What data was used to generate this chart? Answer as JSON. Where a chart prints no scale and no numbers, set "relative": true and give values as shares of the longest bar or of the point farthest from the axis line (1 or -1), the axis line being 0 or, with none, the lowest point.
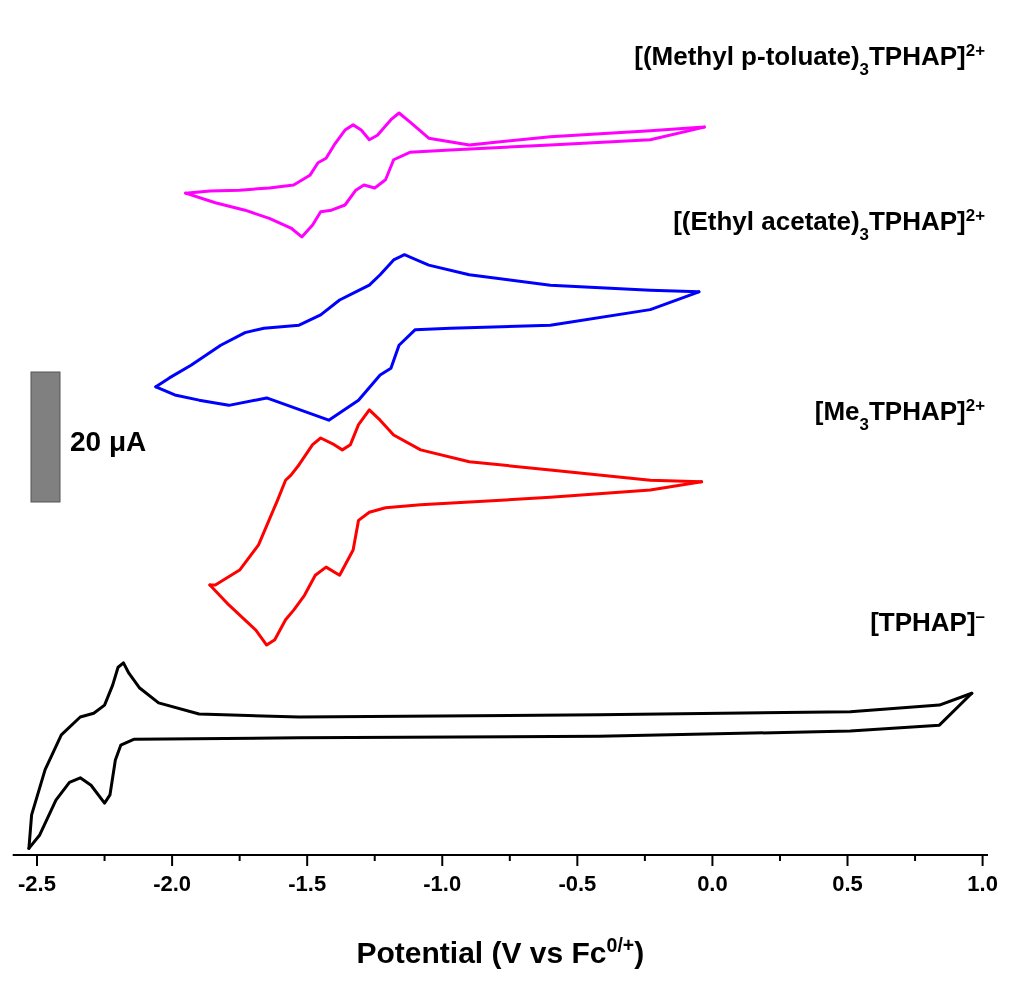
{
  "chart_data": {
    "type": "line",
    "relative": true,
    "xlabel": "Potential (V vs Fc$^{0/+}$)",
    "xlim": [
      -2.59,
      1.02
    ],
    "xticks": [
      {
        "value": -2.5,
        "label": "-2.5"
      },
      {
        "value": -2.25,
        "label": null
      },
      {
        "value": -2.0,
        "label": "-2.0"
      },
      {
        "value": -1.75,
        "label": null
      },
      {
        "value": -1.5,
        "label": "-1.5"
      },
      {
        "value": -1.25,
        "label": null
      },
      {
        "value": -1.0,
        "label": "-1.0"
      },
      {
        "value": -0.75,
        "label": null
      },
      {
        "value": -0.5,
        "label": "-0.5"
      },
      {
        "value": -0.25,
        "label": null
      },
      {
        "value": 0,
        "label": "0.0"
      },
      {
        "value": 0.25,
        "label": null
      },
      {
        "value": 0.5,
        "label": "0.5"
      },
      {
        "value": 0.75,
        "label": null
      },
      {
        "value": 1.0,
        "label": "1.0"
      }
    ],
    "grid": false,
    "legend": false,
    "marker": "none",
    "line_style": "solid",
    "annotations": [
      "20 μA"
    ],
    "series": [
      {
        "name": "[(Methyl p-toluate)$_{3}$TPHAP]$^{2+}$",
        "color": "#ff00ff",
        "x": [
          -0.03,
          -0.23,
          -0.6,
          -0.9,
          -1.05,
          -1.12,
          -1.16,
          -1.19,
          -1.24,
          -1.27,
          -1.3,
          -1.33,
          -1.36,
          -1.4,
          -1.43,
          -1.46,
          -1.49,
          -1.55,
          -1.64,
          -1.75,
          -1.86,
          -1.95
        ],
        "values": [
          0.981,
          0.976,
          0.968,
          0.957,
          0.966,
          0.988,
          1.0,
          0.991,
          0.97,
          0.964,
          0.977,
          0.984,
          0.977,
          0.957,
          0.939,
          0.933,
          0.916,
          0.903,
          0.899,
          0.896,
          0.895,
          0.892
        ]
      },
      {
        "color": "#ff00ff",
        "x": [
          -1.95,
          -1.84,
          -1.73,
          -1.64,
          -1.56,
          -1.52,
          -1.48,
          -1.45,
          -1.41,
          -1.36,
          -1.32,
          -1.29,
          -1.25,
          -1.21,
          -1.18,
          -1.12,
          -0.97,
          -0.6,
          -0.23,
          -0.03
        ],
        "values": [
          0.892,
          0.879,
          0.869,
          0.858,
          0.845,
          0.833,
          0.849,
          0.867,
          0.869,
          0.876,
          0.896,
          0.903,
          0.899,
          0.91,
          0.937,
          0.947,
          0.95,
          0.957,
          0.964,
          0.981
        ]
      },
      {
        "name": "[(Ethyl acetate)$_{3}$TPHAP]$^{2+}$",
        "color": "#0000ff",
        "x": [
          -0.05,
          -0.23,
          -0.6,
          -0.9,
          -1.05,
          -1.14,
          -1.18,
          -1.23,
          -1.27,
          -1.32,
          -1.38,
          -1.45,
          -1.53,
          -1.66,
          -1.73,
          -1.82,
          -1.93,
          -2.01,
          -2.06
        ],
        "values": [
          0.759,
          0.761,
          0.768,
          0.782,
          0.795,
          0.809,
          0.802,
          0.782,
          0.768,
          0.759,
          0.748,
          0.728,
          0.714,
          0.71,
          0.704,
          0.687,
          0.66,
          0.643,
          0.631
        ]
      },
      {
        "color": "#0000ff",
        "x": [
          -2.06,
          -1.99,
          -1.9,
          -1.79,
          -1.65,
          -1.42,
          -1.31,
          -1.23,
          -1.19,
          -1.16,
          -1.1,
          -0.97,
          -0.6,
          -0.23,
          -0.05
        ],
        "values": [
          0.631,
          0.62,
          0.613,
          0.606,
          0.616,
          0.586,
          0.613,
          0.647,
          0.656,
          0.687,
          0.708,
          0.71,
          0.714,
          0.735,
          0.759
        ]
      },
      {
        "name": "[Me$_{3}$TPHAP]$^{2+}$",
        "color": "#ff0000",
        "x": [
          -0.04,
          -0.23,
          -0.6,
          -0.9,
          -1.08,
          -1.18,
          -1.23,
          -1.27,
          -1.31,
          -1.34,
          -1.37,
          -1.4,
          -1.45,
          -1.48,
          -1.53,
          -1.56,
          -1.58,
          -1.61,
          -1.68,
          -1.75,
          -1.84,
          -1.86
        ],
        "values": [
          0.503,
          0.505,
          0.519,
          0.53,
          0.546,
          0.566,
          0.586,
          0.6,
          0.58,
          0.553,
          0.546,
          0.553,
          0.562,
          0.553,
          0.526,
          0.512,
          0.505,
          0.478,
          0.418,
          0.384,
          0.364,
          0.364
        ]
      },
      {
        "color": "#ff0000",
        "x": [
          -1.86,
          -1.79,
          -1.69,
          -1.65,
          -1.62,
          -1.58,
          -1.55,
          -1.51,
          -1.47,
          -1.43,
          -1.38,
          -1.33,
          -1.31,
          -1.27,
          -1.21,
          -1.08,
          -0.6,
          -0.23,
          -0.04
        ],
        "values": [
          0.364,
          0.337,
          0.303,
          0.283,
          0.29,
          0.317,
          0.33,
          0.35,
          0.377,
          0.388,
          0.377,
          0.411,
          0.451,
          0.462,
          0.468,
          0.472,
          0.482,
          0.492,
          0.503
        ]
      },
      {
        "name": "[TPHAP]$^{–}$",
        "color": "#000000",
        "x": [
          0.96,
          0.84,
          0.51,
          -0.42,
          -1.53,
          -1.9,
          -2.05,
          -2.12,
          -2.16,
          -2.18,
          -2.2,
          -2.22,
          -2.25,
          -2.29,
          -2.34,
          -2.41,
          -2.47,
          -2.52,
          -2.53
        ],
        "values": [
          0.218,
          0.202,
          0.193,
          0.189,
          0.186,
          0.19,
          0.205,
          0.225,
          0.245,
          0.259,
          0.253,
          0.229,
          0.202,
          0.191,
          0.186,
          0.162,
          0.115,
          0.054,
          0.009
        ]
      },
      {
        "color": "#000000",
        "x": [
          -2.53,
          -2.49,
          -2.43,
          -2.38,
          -2.34,
          -2.3,
          -2.25,
          -2.23,
          -2.21,
          -2.19,
          -2.14,
          -1.53,
          -0.42,
          0.51,
          0.84,
          0.96
        ],
        "values": [
          0.009,
          0.027,
          0.074,
          0.098,
          0.104,
          0.094,
          0.07,
          0.081,
          0.128,
          0.148,
          0.156,
          0.158,
          0.16,
          0.167,
          0.175,
          0.218
        ]
      }
    ]
  }
}
